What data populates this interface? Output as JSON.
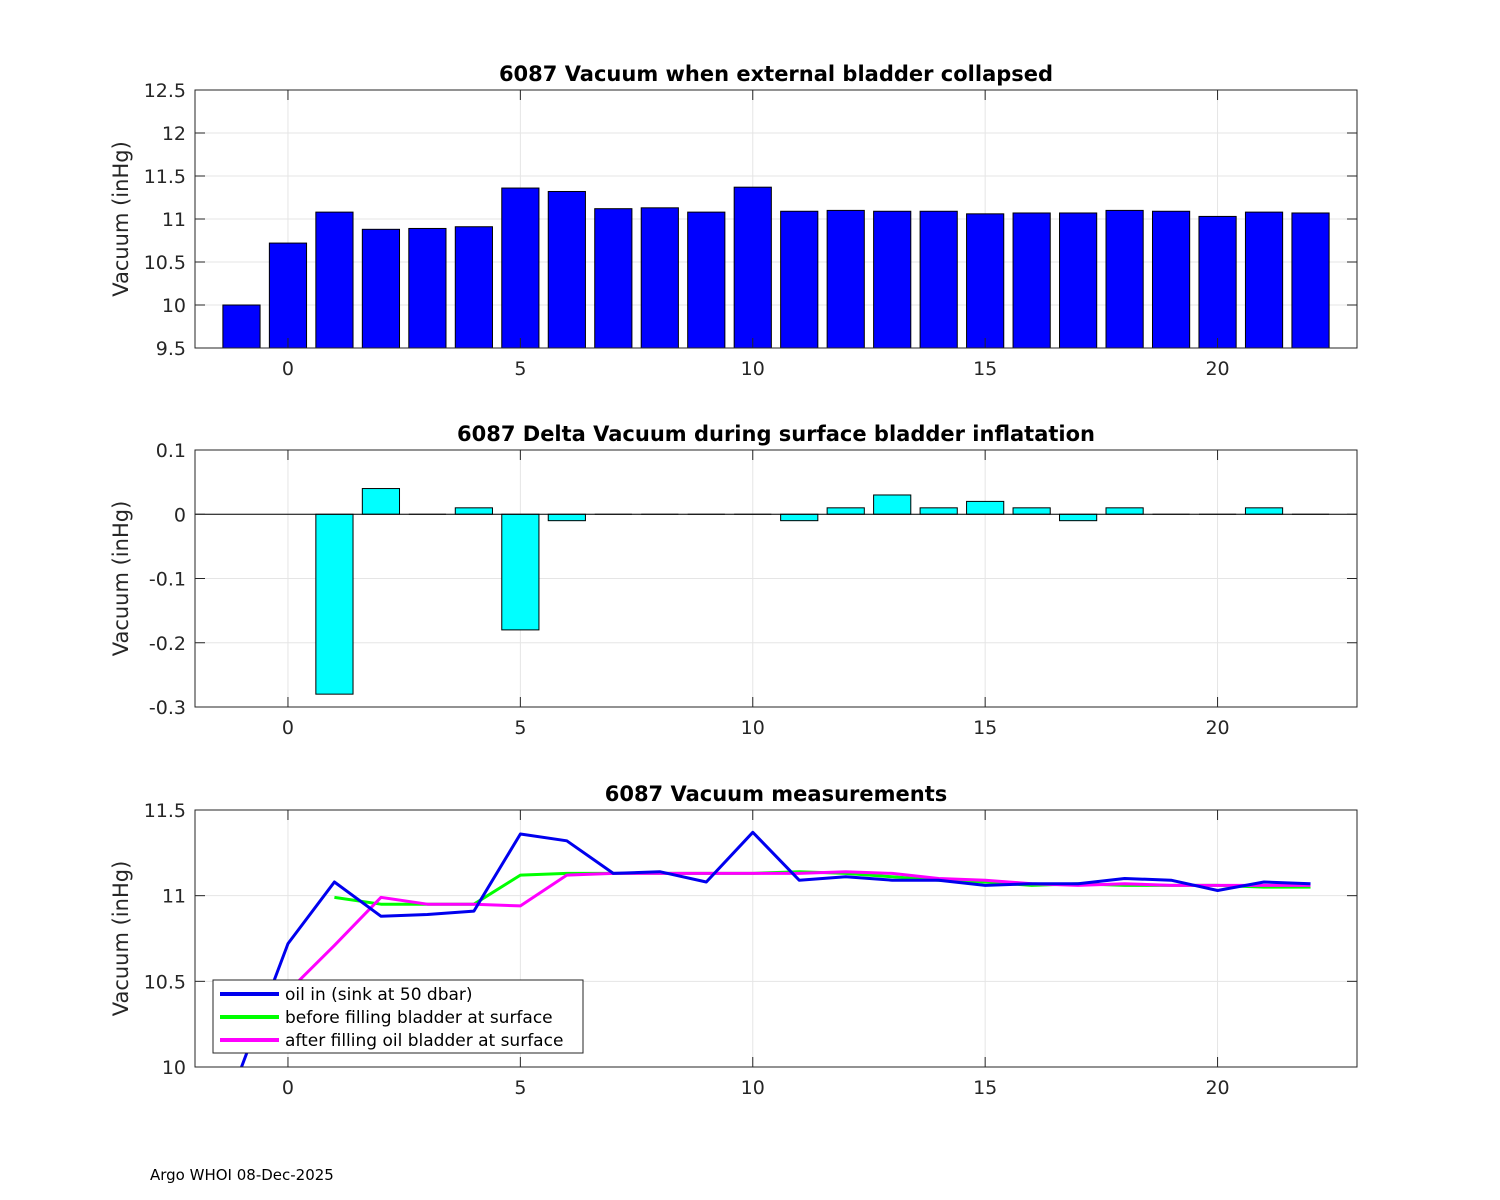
{
  "footer": "Argo WHOI 08-Dec-2025",
  "colors": {
    "bar_top": "#0000ff",
    "bar_mid": "#00ffff",
    "line_blue": "#0000ee",
    "line_green": "#00ff00",
    "line_magenta": "#ff00ff",
    "grid": "#e5e5e5",
    "axis": "#262626"
  },
  "chart_data": [
    {
      "type": "bar",
      "title": "6087 Vacuum when external bladder collapsed",
      "xlabel": "",
      "ylabel": "Vacuum (inHg)",
      "xlim": [
        -2,
        23
      ],
      "ylim": [
        9.5,
        12.5
      ],
      "xticks": [
        0,
        5,
        10,
        15,
        20
      ],
      "yticks": [
        9.5,
        10,
        10.5,
        11,
        11.5,
        12,
        12.5
      ],
      "grid": true,
      "x": [
        -1,
        0,
        1,
        2,
        3,
        4,
        5,
        6,
        7,
        8,
        9,
        10,
        11,
        12,
        13,
        14,
        15,
        16,
        17,
        18,
        19,
        20,
        21,
        22
      ],
      "values": [
        10.0,
        10.72,
        11.08,
        10.88,
        10.89,
        10.91,
        11.36,
        11.32,
        11.12,
        11.13,
        11.08,
        11.37,
        11.09,
        11.1,
        11.09,
        11.09,
        11.06,
        11.07,
        11.07,
        11.1,
        11.09,
        11.03,
        11.08,
        11.07
      ]
    },
    {
      "type": "bar",
      "title": "6087 Delta Vacuum during surface bladder inflatation",
      "xlabel": "",
      "ylabel": "Vacuum (inHg)",
      "xlim": [
        -2,
        23
      ],
      "ylim": [
        -0.3,
        0.1
      ],
      "xticks": [
        0,
        5,
        10,
        15,
        20
      ],
      "yticks": [
        -0.3,
        -0.2,
        -0.1,
        0,
        0.1
      ],
      "grid": true,
      "x": [
        1,
        2,
        3,
        4,
        5,
        6,
        7,
        8,
        9,
        10,
        11,
        12,
        13,
        14,
        15,
        16,
        17,
        18,
        19,
        20,
        21,
        22
      ],
      "values": [
        -0.28,
        0.04,
        0,
        0.01,
        -0.18,
        -0.01,
        0,
        0,
        0,
        0,
        -0.01,
        0.01,
        0.03,
        0.01,
        0.02,
        0.01,
        -0.01,
        0.01,
        0,
        0,
        0.01,
        0
      ]
    },
    {
      "type": "line",
      "title": "6087 Vacuum measurements",
      "xlabel": "",
      "ylabel": "Vacuum (inHg)",
      "xlim": [
        -2,
        23
      ],
      "ylim": [
        10,
        11.5
      ],
      "xticks": [
        0,
        5,
        10,
        15,
        20
      ],
      "yticks": [
        10,
        10.5,
        11,
        11.5
      ],
      "grid": true,
      "legend_position": "bottom-left",
      "series": [
        {
          "name": "oil in (sink at 50 dbar)",
          "color": "#0000ee",
          "x": [
            -1,
            0,
            1,
            2,
            3,
            4,
            5,
            6,
            7,
            8,
            9,
            10,
            11,
            12,
            13,
            14,
            15,
            16,
            17,
            18,
            19,
            20,
            21,
            22
          ],
          "values": [
            10.0,
            10.72,
            11.08,
            10.88,
            10.89,
            10.91,
            11.36,
            11.32,
            11.13,
            11.14,
            11.08,
            11.37,
            11.09,
            11.11,
            11.09,
            11.09,
            11.06,
            11.07,
            11.07,
            11.1,
            11.09,
            11.03,
            11.08,
            11.07
          ]
        },
        {
          "name": "before filling bladder at surface",
          "color": "#00ff00",
          "x": [
            1,
            2,
            3,
            4,
            5,
            6,
            7,
            8,
            9,
            10,
            11,
            12,
            13,
            14,
            15,
            16,
            17,
            18,
            19,
            20,
            21,
            22
          ],
          "values": [
            10.99,
            10.95,
            10.95,
            10.95,
            11.12,
            11.13,
            11.13,
            11.13,
            11.13,
            11.13,
            11.14,
            11.13,
            11.11,
            11.09,
            11.08,
            11.06,
            11.07,
            11.06,
            11.06,
            11.06,
            11.05,
            11.05
          ]
        },
        {
          "name": "after filling oil bladder at surface",
          "color": "#ff00ff",
          "x": [
            0,
            1,
            2,
            3,
            4,
            5,
            6,
            7,
            8,
            9,
            10,
            11,
            12,
            13,
            14,
            15,
            16,
            17,
            18,
            19,
            20,
            21,
            22
          ],
          "values": [
            10.44,
            10.71,
            10.99,
            10.95,
            10.95,
            10.94,
            11.12,
            11.13,
            11.13,
            11.13,
            11.13,
            11.13,
            11.14,
            11.13,
            11.1,
            11.09,
            11.07,
            11.06,
            11.07,
            11.06,
            11.06,
            11.06,
            11.06
          ]
        }
      ]
    }
  ]
}
